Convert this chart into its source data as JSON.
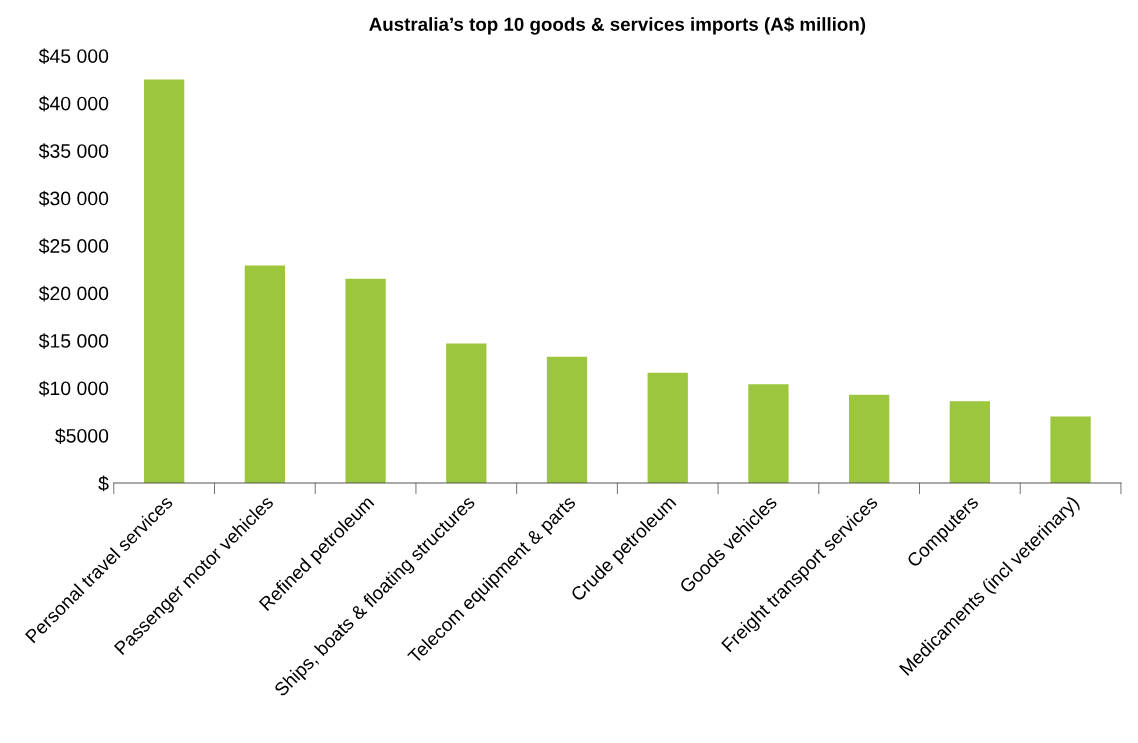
{
  "chart_data": {
    "type": "bar",
    "title": "Australia’s top 10 goods & services imports (A$ million)",
    "categories": [
      "Personal travel services",
      "Passenger motor vehicles",
      "Refined petroleum",
      "Ships, boats & floating structures",
      "Telecom equipment & parts",
      "Crude petroleum",
      "Goods vehicles",
      "Freight transport services",
      "Computers",
      "Medicaments (incl veterinary)"
    ],
    "values": [
      42500,
      22900,
      21500,
      14700,
      13300,
      11600,
      10400,
      9300,
      8600,
      7000
    ],
    "color": "#9dc63f",
    "ylim": [
      0,
      45000
    ],
    "yticks": [
      {
        "value": 0,
        "label": "$"
      },
      {
        "value": 5000,
        "label": "$5000"
      },
      {
        "value": 10000,
        "label": "$10 000"
      },
      {
        "value": 15000,
        "label": "$15 000"
      },
      {
        "value": 20000,
        "label": "$20 000"
      },
      {
        "value": 25000,
        "label": "$25 000"
      },
      {
        "value": 30000,
        "label": "$30 000"
      },
      {
        "value": 35000,
        "label": "$35 000"
      },
      {
        "value": 40000,
        "label": "$40 000"
      },
      {
        "value": 45000,
        "label": "$45 000"
      }
    ],
    "grid": false,
    "legend": false
  }
}
